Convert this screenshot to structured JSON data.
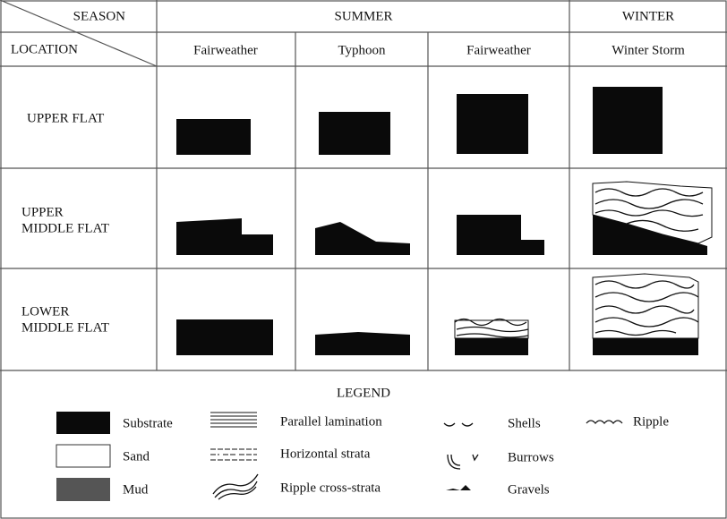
{
  "header": {
    "season": "SEASON",
    "location": "LOCATION",
    "summer": "SUMMER",
    "winter": "WINTER",
    "columns": [
      "Fairweather",
      "Typhoon",
      "Fairweather",
      "Winter Storm"
    ]
  },
  "rows": [
    [
      "UPPER FLAT"
    ],
    [
      "UPPER",
      "MIDDLE FLAT"
    ],
    [
      "LOWER",
      "MIDDLE FLAT"
    ]
  ],
  "legend": {
    "title": "LEGEND",
    "items": [
      "Substrate",
      "Sand",
      "Mud",
      "Parallel lamination",
      "Horizontal strata",
      "Ripple cross-strata",
      "Shells",
      "Burrows",
      "Gravels",
      "Ripple"
    ]
  }
}
